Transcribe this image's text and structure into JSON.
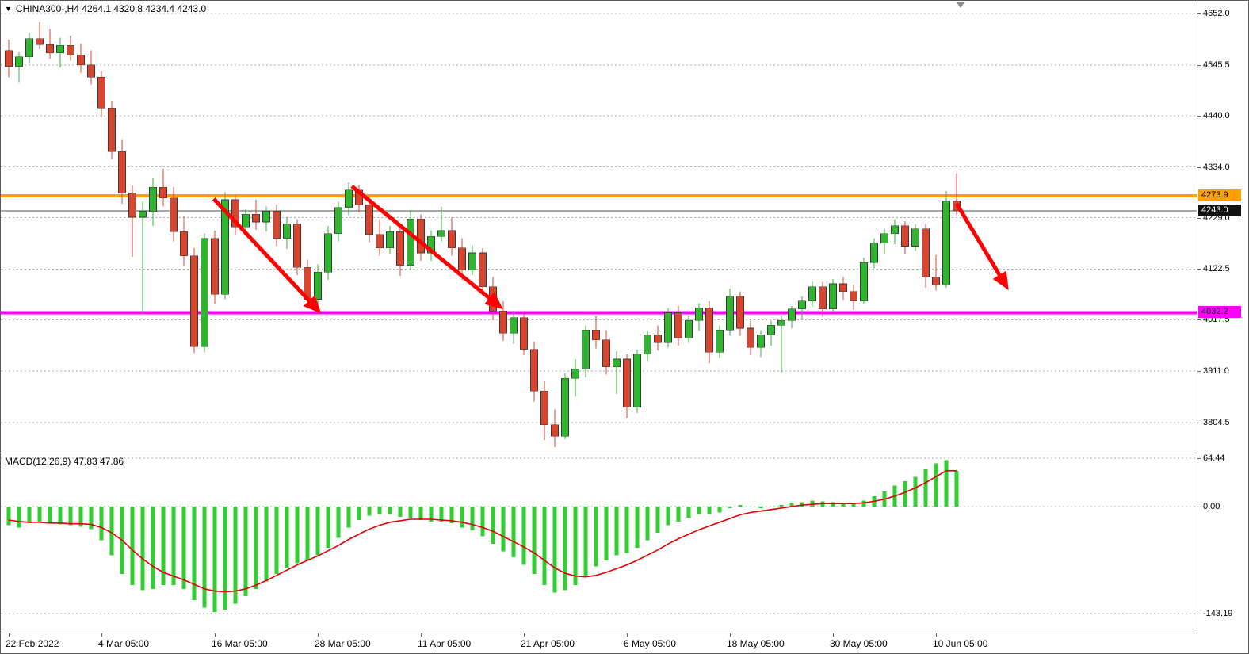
{
  "title": {
    "symbol_period": "CHINA300-,H4",
    "ohlc": "4264.1 4320.8 4234.4 4243.0"
  },
  "macd_label": "MACD(12,26,9) 47.83 47.86",
  "colors": {
    "up": "#2fb52f",
    "down": "#d8452f",
    "body_outline": "#3a3a3a",
    "macd_hist": "#32cd32",
    "macd_signal": "#e00000",
    "arrow": "#ff0000",
    "current_line": "#4d4d4d"
  },
  "chart_data": {
    "type": "candlestick_with_macd",
    "symbol": "CHINA300-",
    "timeframe": "H4",
    "current_bar": {
      "open": 4264.1,
      "high": 4320.8,
      "low": 4234.4,
      "close": 4243.0
    },
    "price_axis_ticks": [
      4652.0,
      4545.5,
      4440.0,
      4334.0,
      4229.0,
      4122.5,
      4017.5,
      3911.0,
      3804.5
    ],
    "hlines": [
      {
        "name": "resistance-line",
        "price": 4273.9,
        "label": "4273.9",
        "color": "#ffa000"
      },
      {
        "name": "support-line",
        "price": 4032.2,
        "label": "4032.2",
        "color": "#ff00ff"
      }
    ],
    "current_price_line": {
      "price": 4243.0,
      "label": "4243.0"
    },
    "arrows": [
      {
        "from_index": 19.9,
        "from_price": 4268,
        "to_index": 30.0,
        "to_price": 4038
      },
      {
        "from_index": 33.3,
        "from_price": 4294,
        "to_index": 47.6,
        "to_price": 4046
      },
      {
        "from_index": 92.0,
        "from_price": 4258,
        "to_index": 96.8,
        "to_price": 4088
      }
    ],
    "x_axis_labels": [
      {
        "index": 0,
        "label": "22 Feb 2022"
      },
      {
        "index": 9,
        "label": "4 Mar 05:00"
      },
      {
        "index": 20,
        "label": "16 Mar 05:00"
      },
      {
        "index": 30,
        "label": "28 Mar 05:00"
      },
      {
        "index": 40,
        "label": "11 Apr 05:00"
      },
      {
        "index": 50,
        "label": "21 Apr 05:00"
      },
      {
        "index": 60,
        "label": "6 May 05:00"
      },
      {
        "index": 70,
        "label": "18 May 05:00"
      },
      {
        "index": 80,
        "label": "30 May 05:00"
      },
      {
        "index": 90,
        "label": "10 Jun 05:00"
      }
    ],
    "candles": [
      [
        4575,
        4598,
        4520,
        4542
      ],
      [
        4542,
        4572,
        4508,
        4562
      ],
      [
        4562,
        4612,
        4548,
        4600
      ],
      [
        4600,
        4634,
        4578,
        4588
      ],
      [
        4588,
        4620,
        4558,
        4570
      ],
      [
        4570,
        4602,
        4540,
        4586
      ],
      [
        4586,
        4606,
        4554,
        4566
      ],
      [
        4566,
        4590,
        4530,
        4546
      ],
      [
        4546,
        4576,
        4505,
        4520
      ],
      [
        4520,
        4532,
        4438,
        4456
      ],
      [
        4456,
        4470,
        4350,
        4366
      ],
      [
        4366,
        4392,
        4258,
        4280
      ],
      [
        4280,
        4296,
        4148,
        4230
      ],
      [
        4230,
        4262,
        4030,
        4242
      ],
      [
        4242,
        4312,
        4212,
        4292
      ],
      [
        4292,
        4330,
        4252,
        4270
      ],
      [
        4270,
        4292,
        4180,
        4200
      ],
      [
        4200,
        4232,
        4128,
        4150
      ],
      [
        4150,
        4166,
        3948,
        3962
      ],
      [
        3962,
        4196,
        3950,
        4186
      ],
      [
        4186,
        4202,
        4050,
        4070
      ],
      [
        4070,
        4282,
        4060,
        4266
      ],
      [
        4266,
        4276,
        4194,
        4210
      ],
      [
        4210,
        4246,
        4190,
        4236
      ],
      [
        4236,
        4266,
        4204,
        4220
      ],
      [
        4220,
        4252,
        4200,
        4242
      ],
      [
        4242,
        4256,
        4170,
        4186
      ],
      [
        4186,
        4230,
        4164,
        4216
      ],
      [
        4216,
        4226,
        4110,
        4126
      ],
      [
        4126,
        4142,
        4040,
        4060
      ],
      [
        4060,
        4132,
        4048,
        4116
      ],
      [
        4116,
        4212,
        4100,
        4196
      ],
      [
        4196,
        4262,
        4180,
        4250
      ],
      [
        4250,
        4302,
        4234,
        4286
      ],
      [
        4286,
        4296,
        4240,
        4256
      ],
      [
        4256,
        4270,
        4178,
        4194
      ],
      [
        4194,
        4226,
        4150,
        4166
      ],
      [
        4166,
        4212,
        4154,
        4200
      ],
      [
        4200,
        4216,
        4108,
        4130
      ],
      [
        4130,
        4242,
        4120,
        4226
      ],
      [
        4226,
        4236,
        4140,
        4156
      ],
      [
        4156,
        4202,
        4140,
        4190
      ],
      [
        4190,
        4252,
        4180,
        4202
      ],
      [
        4202,
        4230,
        4150,
        4166
      ],
      [
        4166,
        4186,
        4100,
        4120
      ],
      [
        4120,
        4172,
        4110,
        4156
      ],
      [
        4156,
        4166,
        4068,
        4086
      ],
      [
        4086,
        4106,
        4018,
        4036
      ],
      [
        4036,
        4056,
        3974,
        3990
      ],
      [
        3990,
        4036,
        3968,
        4022
      ],
      [
        4022,
        4032,
        3944,
        3956
      ],
      [
        3956,
        3972,
        3848,
        3870
      ],
      [
        3870,
        3892,
        3768,
        3800
      ],
      [
        3800,
        3832,
        3754,
        3776
      ],
      [
        3776,
        3906,
        3770,
        3896
      ],
      [
        3896,
        3936,
        3858,
        3916
      ],
      [
        3916,
        4006,
        3898,
        3996
      ],
      [
        3996,
        4026,
        3958,
        3976
      ],
      [
        3976,
        3996,
        3904,
        3920
      ],
      [
        3920,
        3952,
        3864,
        3936
      ],
      [
        3936,
        3946,
        3814,
        3836
      ],
      [
        3836,
        3956,
        3824,
        3946
      ],
      [
        3946,
        3996,
        3930,
        3986
      ],
      [
        3986,
        4006,
        3954,
        3970
      ],
      [
        3970,
        4042,
        3960,
        4032
      ],
      [
        4032,
        4046,
        3964,
        3980
      ],
      [
        3980,
        4026,
        3970,
        4016
      ],
      [
        4016,
        4052,
        3994,
        4042
      ],
      [
        4042,
        4056,
        3928,
        3950
      ],
      [
        3950,
        4006,
        3938,
        3996
      ],
      [
        3996,
        4082,
        3984,
        4066
      ],
      [
        4066,
        4076,
        3984,
        4000
      ],
      [
        4000,
        4016,
        3944,
        3960
      ],
      [
        3960,
        3996,
        3940,
        3986
      ],
      [
        3986,
        4016,
        3964,
        4006
      ],
      [
        4006,
        4026,
        3908,
        4016
      ],
      [
        4016,
        4046,
        4000,
        4040
      ],
      [
        4040,
        4066,
        4020,
        4056
      ],
      [
        4056,
        4096,
        4044,
        4086
      ],
      [
        4086,
        4096,
        4024,
        4040
      ],
      [
        4040,
        4102,
        4034,
        4092
      ],
      [
        4092,
        4106,
        4058,
        4076
      ],
      [
        4076,
        4090,
        4038,
        4056
      ],
      [
        4056,
        4146,
        4050,
        4136
      ],
      [
        4136,
        4186,
        4124,
        4176
      ],
      [
        4176,
        4206,
        4154,
        4196
      ],
      [
        4196,
        4226,
        4174,
        4212
      ],
      [
        4212,
        4222,
        4154,
        4170
      ],
      [
        4170,
        4216,
        4160,
        4206
      ],
      [
        4206,
        4216,
        4084,
        4106
      ],
      [
        4106,
        4152,
        4078,
        4090
      ],
      [
        4090,
        4284,
        4084,
        4264
      ],
      [
        4264.1,
        4320.8,
        4234.4,
        4243.0
      ]
    ],
    "macd": {
      "params": "12,26,9",
      "current": [
        47.83,
        47.86
      ],
      "axis_ticks": [
        64.44,
        0.0,
        -143.19
      ],
      "histogram": [
        -25,
        -28,
        -22,
        -20,
        -22,
        -24,
        -25,
        -27,
        -30,
        -45,
        -65,
        -90,
        -105,
        -112,
        -110,
        -105,
        -105,
        -110,
        -125,
        -135,
        -141,
        -138,
        -130,
        -120,
        -110,
        -100,
        -90,
        -82,
        -76,
        -72,
        -65,
        -55,
        -42,
        -28,
        -18,
        -12,
        -10,
        -10,
        -14,
        -15,
        -18,
        -20,
        -20,
        -22,
        -28,
        -32,
        -40,
        -50,
        -60,
        -68,
        -78,
        -90,
        -105,
        -115,
        -112,
        -105,
        -92,
        -80,
        -72,
        -65,
        -62,
        -55,
        -45,
        -35,
        -25,
        -20,
        -15,
        -10,
        -10,
        -8,
        -2,
        2,
        0,
        -2,
        0,
        2,
        5,
        6,
        8,
        7,
        6,
        5,
        4,
        8,
        14,
        20,
        28,
        34,
        40,
        50,
        58,
        62,
        47.83
      ],
      "signal": [
        -18,
        -20,
        -21,
        -21,
        -22,
        -22,
        -23,
        -23,
        -24,
        -28,
        -35,
        -45,
        -58,
        -70,
        -80,
        -88,
        -93,
        -98,
        -104,
        -110,
        -113,
        -114,
        -113,
        -110,
        -105,
        -99,
        -92,
        -85,
        -78,
        -72,
        -66,
        -59,
        -52,
        -44,
        -37,
        -30,
        -25,
        -21,
        -19,
        -17,
        -17,
        -17,
        -18,
        -19,
        -21,
        -24,
        -28,
        -33,
        -40,
        -47,
        -54,
        -62,
        -72,
        -82,
        -89,
        -93,
        -94,
        -92,
        -88,
        -83,
        -78,
        -72,
        -65,
        -58,
        -50,
        -43,
        -37,
        -31,
        -26,
        -21,
        -16,
        -11,
        -8,
        -6,
        -4,
        -2,
        0,
        2,
        3,
        4,
        4,
        4,
        4,
        5,
        7,
        10,
        14,
        19,
        25,
        32,
        40,
        48,
        47.86
      ]
    }
  }
}
